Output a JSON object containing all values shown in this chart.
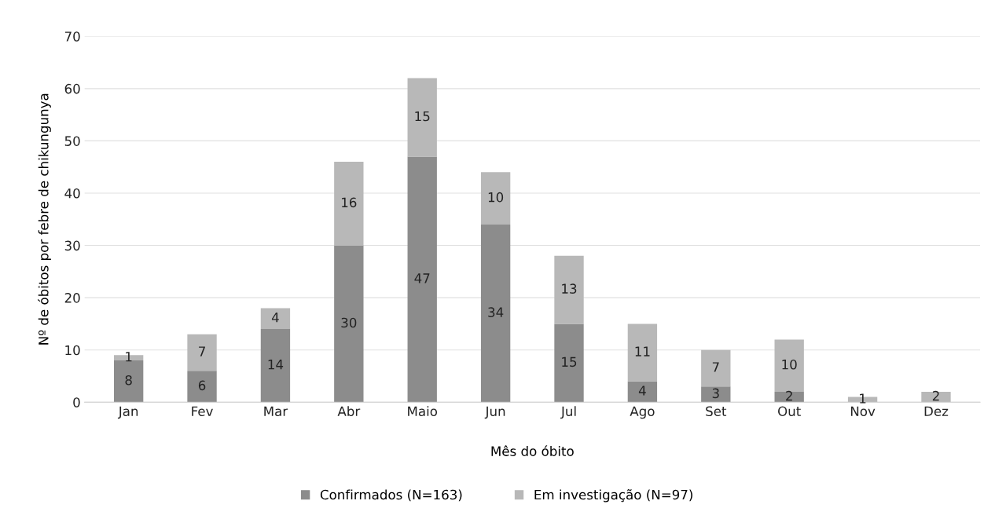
{
  "chart_data": {
    "type": "bar",
    "stacked": true,
    "xlabel": "Mês do óbito",
    "ylabel": "Nº de óbitos por febre de chikungunya",
    "categories": [
      "Jan",
      "Fev",
      "Mar",
      "Abr",
      "Maio",
      "Jun",
      "Jul",
      "Ago",
      "Set",
      "Out",
      "Nov",
      "Dez"
    ],
    "series": [
      {
        "name": "Confirmados (N=163)",
        "color": "#8c8c8c",
        "values": [
          8,
          6,
          14,
          30,
          47,
          34,
          15,
          4,
          3,
          2,
          0,
          0
        ],
        "value_labels": [
          "8",
          "6",
          "14",
          "30",
          "47",
          "34",
          "15",
          "4",
          "3",
          "2",
          null,
          null
        ]
      },
      {
        "name": "Em investigação (N=97)",
        "color": "#b8b8b8",
        "values": [
          1,
          7,
          4,
          16,
          15,
          10,
          13,
          11,
          7,
          10,
          1,
          2
        ],
        "value_labels": [
          "1",
          "7",
          "4",
          "16",
          "15",
          "10",
          "13",
          "11",
          "7",
          "10",
          "1",
          "2"
        ]
      }
    ],
    "ylim": [
      0,
      70
    ],
    "yticks": [
      0,
      10,
      20,
      30,
      40,
      50,
      60,
      70
    ],
    "grid": "y",
    "legend": "bottom"
  }
}
